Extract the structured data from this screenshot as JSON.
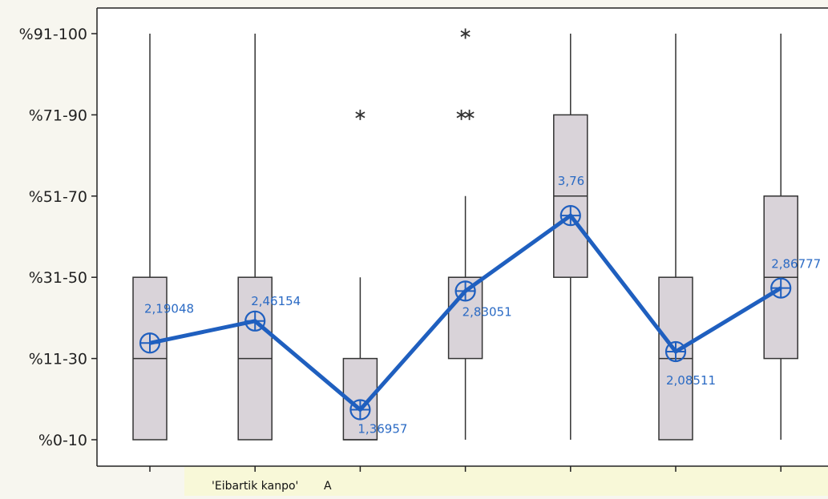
{
  "chart_data": {
    "type": "boxplot",
    "y_tick_labels": [
      "%0-10",
      "%11-30",
      "%31-50",
      "%51-70",
      "%71-90",
      "%91-100"
    ],
    "y_range": [
      1,
      6
    ],
    "x_tick_labels": [
      "",
      "'Eibartik kanpo'",
      "",
      "",
      "",
      "",
      "",
      ""
    ],
    "x_truncated_label": "A",
    "boxes": [
      {
        "min": 1,
        "q1": 1,
        "median": 2,
        "q3": 3,
        "max": 6,
        "mean": 2.19048,
        "mean_label": "2,19048",
        "outliers": []
      },
      {
        "min": 1,
        "q1": 1,
        "median": 2,
        "q3": 3,
        "max": 6,
        "mean": 2.46154,
        "mean_label": "2,46154",
        "outliers": []
      },
      {
        "min": 1,
        "q1": 1,
        "median": 1,
        "q3": 2,
        "max": 3,
        "mean": 1.36957,
        "mean_label": "1,36957",
        "outliers": [
          5
        ]
      },
      {
        "min": 1,
        "q1": 2,
        "median": 3,
        "q3": 3,
        "max": 4,
        "mean": 2.83051,
        "mean_label": "2,83051",
        "outliers": [
          5,
          5,
          6
        ]
      },
      {
        "min": 1,
        "q1": 3,
        "median": 4,
        "q3": 5,
        "max": 6,
        "mean": 3.76,
        "mean_label": "3,76",
        "outliers": []
      },
      {
        "min": 1,
        "q1": 1,
        "median": 2,
        "q3": 3,
        "max": 6,
        "mean": 2.08511,
        "mean_label": "2,08511",
        "outliers": []
      },
      {
        "min": 1,
        "q1": 2,
        "median": 3,
        "q3": 4,
        "max": 6,
        "mean": 2.86777,
        "mean_label": "2,86777",
        "outliers": []
      }
    ],
    "colors": {
      "box_fill": "#d9d3d9",
      "box_stroke": "#333333",
      "mean_line": "#1f5fbf",
      "mean_label": "#2a6ac4",
      "outlier": "#333333"
    }
  }
}
